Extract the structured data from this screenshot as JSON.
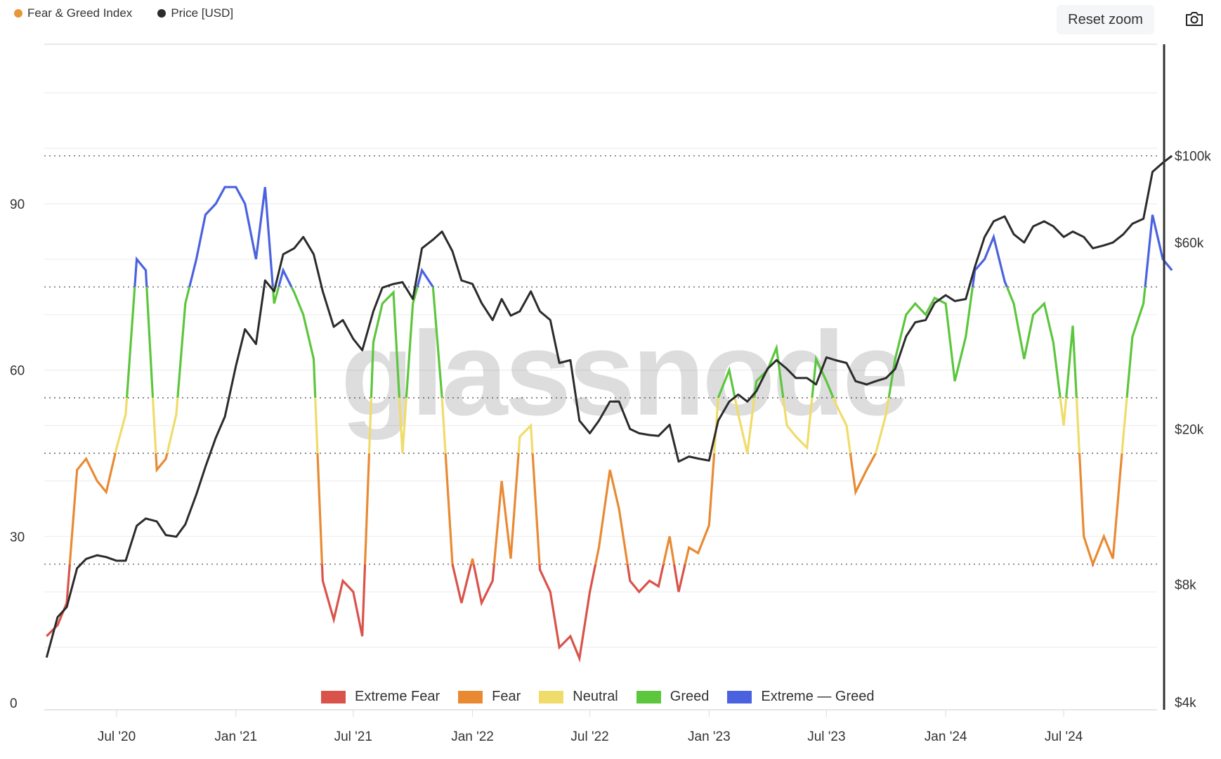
{
  "header": {
    "legend": [
      {
        "label": "Fear & Greed Index",
        "color": "#e8963a"
      },
      {
        "label": "Price [USD]",
        "color": "#2b2b2b"
      }
    ],
    "reset_zoom_label": "Reset zoom",
    "camera_icon": "camera-icon"
  },
  "watermark": "glassnode",
  "chart_data": {
    "type": "line",
    "title": "",
    "x_interval": "semi-monthly (1st and 15th)",
    "x_start": "2020-03-15",
    "x_end": "2024-12-15",
    "x_ticks": [
      "Jul '20",
      "Jan '21",
      "Jul '21",
      "Jan '22",
      "Jul '22",
      "Jan '23",
      "Jul '23",
      "Jan '24",
      "Jul '24"
    ],
    "x_tick_dates": [
      "2020-07-01",
      "2021-01-01",
      "2021-07-01",
      "2022-01-01",
      "2022-07-01",
      "2023-01-01",
      "2023-07-01",
      "2024-01-01",
      "2024-07-01"
    ],
    "y_left": {
      "label": "Fear & Greed Index",
      "ticks": [
        "0",
        "30",
        "60",
        "90"
      ],
      "tick_values": [
        0,
        30,
        60,
        90
      ],
      "range": [
        0,
        118
      ]
    },
    "y_right": {
      "label": "Price [USD]",
      "scale": "log",
      "ticks": [
        "$4k",
        "$8k",
        "$20k",
        "$60k",
        "$100k"
      ],
      "tick_values": [
        4000,
        8000,
        20000,
        60000,
        100000
      ],
      "range": [
        4000,
        160000
      ]
    },
    "thresholds": [
      25,
      45,
      55,
      75
    ],
    "price_reference_line": 100000,
    "bands": [
      {
        "name": "Extreme Fear",
        "min": 0,
        "max": 25,
        "color": "#d9534a"
      },
      {
        "name": "Fear",
        "min": 25,
        "max": 45,
        "color": "#e98a33"
      },
      {
        "name": "Neutral",
        "min": 45,
        "max": 55,
        "color": "#efdc6a"
      },
      {
        "name": "Greed",
        "min": 55,
        "max": 75,
        "color": "#5cc63d"
      },
      {
        "name": "Extreme — Greed",
        "min": 75,
        "max": 100,
        "color": "#4a62e0"
      }
    ],
    "series": [
      {
        "name": "Fear & Greed Index",
        "values": [
          12,
          14,
          18,
          42,
          44,
          40,
          38,
          46,
          52,
          80,
          78,
          42,
          44,
          52,
          72,
          80,
          88,
          90,
          93,
          93,
          90,
          80,
          93,
          72,
          78,
          74,
          70,
          62,
          22,
          15,
          22,
          20,
          12,
          65,
          72,
          74,
          45,
          72,
          78,
          75,
          55,
          25,
          18,
          26,
          18,
          22,
          40,
          26,
          48,
          50,
          24,
          20,
          10,
          12,
          8,
          20,
          28,
          42,
          35,
          22,
          20,
          22,
          21,
          30,
          20,
          28,
          27,
          32,
          55,
          60,
          52,
          45,
          58,
          60,
          64,
          50,
          48,
          46,
          62,
          58,
          54,
          50,
          38,
          42,
          45,
          52,
          62,
          70,
          72,
          70,
          73,
          72,
          58,
          66,
          78,
          80,
          84,
          76,
          72,
          62,
          70,
          72,
          65,
          50,
          68,
          30,
          25,
          30,
          26,
          48,
          66,
          72,
          88,
          80,
          78
        ]
      },
      {
        "name": "Price [USD]",
        "color": "#2b2b2b",
        "values": [
          5200,
          6600,
          7000,
          8800,
          9300,
          9500,
          9400,
          9200,
          9200,
          11300,
          11800,
          11600,
          10700,
          10600,
          11400,
          13600,
          16000,
          19000,
          21500,
          29000,
          36000,
          33000,
          48000,
          45000,
          56000,
          58000,
          62000,
          56000,
          45000,
          36500,
          38000,
          34000,
          31800,
          40000,
          46000,
          47000,
          47500,
          43000,
          58000,
          61000,
          64000,
          57000,
          48000,
          47000,
          42000,
          38000,
          43000,
          39000,
          40000,
          45000,
          40000,
          38000,
          29500,
          30000,
          21000,
          19500,
          21000,
          23500,
          23500,
          20000,
          19500,
          19300,
          19200,
          20500,
          16500,
          17000,
          16800,
          16600,
          21000,
          23500,
          24500,
          23500,
          25000,
          28500,
          30000,
          28500,
          27000,
          27000,
          26000,
          30500,
          30000,
          29500,
          26500,
          26000,
          26500,
          27000,
          28500,
          34500,
          37500,
          38000,
          42000,
          44000,
          42500,
          43000,
          52000,
          62000,
          68000,
          70000,
          63000,
          60000,
          66000,
          68000,
          66000,
          62000,
          64000,
          62000,
          58000,
          59000,
          60000,
          63000,
          67000,
          69000,
          91000,
          96000,
          100000
        ]
      }
    ],
    "legend_placement": "bottom-center"
  }
}
